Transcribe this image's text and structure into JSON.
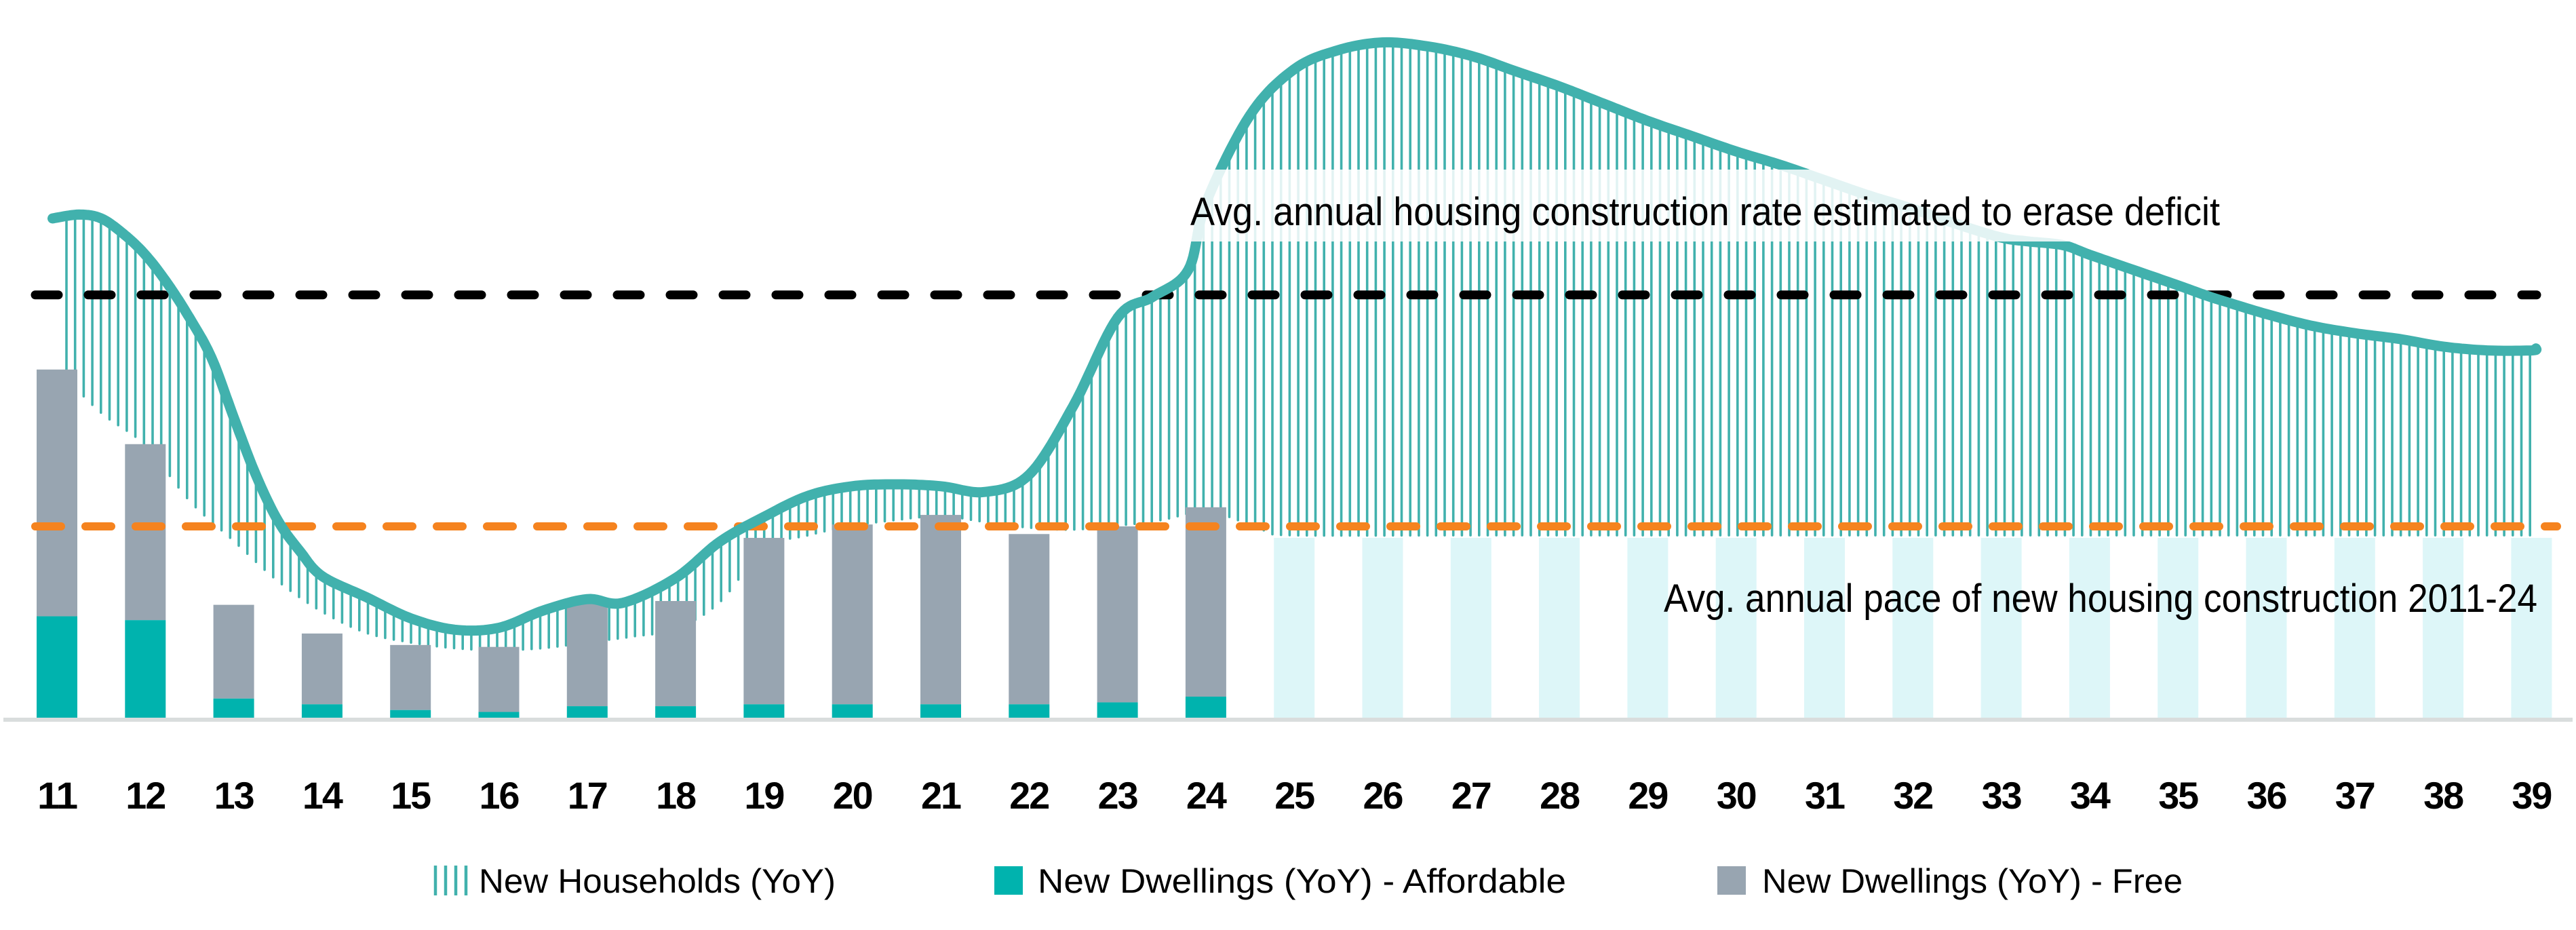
{
  "chart_data": {
    "type": "bar",
    "subtype": "stacked-bars-with-smoothed-line-and-hatched-deficit-area",
    "value_units": "relative index (100 = average annual pace of new housing construction 2011-24); no numeric axis shown in chart",
    "categories": [
      "11",
      "12",
      "13",
      "14",
      "15",
      "16",
      "17",
      "18",
      "19",
      "20",
      "21",
      "22",
      "23",
      "24",
      "25",
      "26",
      "27",
      "28",
      "29",
      "30",
      "31",
      "32",
      "33",
      "34",
      "35",
      "36",
      "37",
      "38",
      "39"
    ],
    "xlabel": "",
    "ylabel": "",
    "grid": "off",
    "legend_position": "bottom",
    "series": [
      {
        "name": "New Households (YoY)",
        "type": "line",
        "style": "thick smooth teal line with vertical hatch fill hanging down to the dwellings level",
        "values_at_years": [
          261,
          242,
          157,
          74,
          52,
          47,
          62,
          73,
          105,
          121,
          121,
          127,
          209,
          269,
          339,
          353,
          346,
          330,
          312,
          296,
          281,
          266,
          251,
          242,
          226,
          211,
          201,
          194,
          192
        ],
        "points": [
          [
            10.95,
            261
          ],
          [
            11.25,
            263
          ],
          [
            11.5,
            261
          ],
          [
            11.75,
            253
          ],
          [
            12,
            242
          ],
          [
            12.25,
            227
          ],
          [
            12.5,
            209
          ],
          [
            12.75,
            188
          ],
          [
            13,
            157
          ],
          [
            13.25,
            127
          ],
          [
            13.5,
            103
          ],
          [
            13.75,
            87
          ],
          [
            14,
            74
          ],
          [
            14.5,
            63
          ],
          [
            15,
            52
          ],
          [
            15.5,
            46
          ],
          [
            16,
            47
          ],
          [
            16.5,
            56
          ],
          [
            17,
            62
          ],
          [
            17.4,
            60
          ],
          [
            18,
            73
          ],
          [
            18.5,
            92
          ],
          [
            19,
            105
          ],
          [
            19.5,
            116
          ],
          [
            20,
            121
          ],
          [
            20.5,
            122
          ],
          [
            21,
            121
          ],
          [
            21.5,
            118
          ],
          [
            22,
            127
          ],
          [
            22.5,
            163
          ],
          [
            23,
            209
          ],
          [
            23.4,
            220
          ],
          [
            23.8,
            234
          ],
          [
            24,
            269
          ],
          [
            24.5,
            315
          ],
          [
            25,
            339
          ],
          [
            25.5,
            349
          ],
          [
            26,
            353
          ],
          [
            26.5,
            351
          ],
          [
            27,
            346
          ],
          [
            27.5,
            338
          ],
          [
            28,
            330
          ],
          [
            28.5,
            321
          ],
          [
            29,
            312
          ],
          [
            29.5,
            304
          ],
          [
            30,
            296
          ],
          [
            30.5,
            289
          ],
          [
            31,
            281
          ],
          [
            31.5,
            273
          ],
          [
            32,
            266
          ],
          [
            32.5,
            258
          ],
          [
            33,
            251
          ],
          [
            33.3,
            249
          ],
          [
            33.7,
            247
          ],
          [
            34,
            242
          ],
          [
            34.5,
            234
          ],
          [
            35,
            226
          ],
          [
            35.3,
            221
          ],
          [
            35.5,
            218
          ],
          [
            36,
            211
          ],
          [
            36.5,
            205
          ],
          [
            37,
            201
          ],
          [
            37.5,
            198
          ],
          [
            38,
            194
          ],
          [
            38.5,
            192
          ],
          [
            39,
            192
          ],
          [
            39.05,
            193
          ]
        ]
      },
      {
        "name": "New Dwellings (YoY) - Affordable",
        "type": "bar",
        "values": [
          53,
          51,
          10,
          7,
          4,
          3,
          6,
          6,
          7,
          7,
          7,
          7,
          8,
          11,
          null,
          null,
          null,
          null,
          null,
          null,
          null,
          null,
          null,
          null,
          null,
          null,
          null,
          null,
          null
        ]
      },
      {
        "name": "New Dwellings (YoY) - Free",
        "type": "bar",
        "values": [
          129,
          92,
          49,
          37,
          34,
          34,
          54,
          55,
          87,
          94,
          99,
          89,
          92,
          99,
          null,
          null,
          null,
          null,
          null,
          null,
          null,
          null,
          null,
          null,
          null,
          null,
          null,
          null,
          null
        ]
      },
      {
        "name": "future-construction-bars (unlabeled pale cyan bars, years 25-39)",
        "type": "bar",
        "values": [
          null,
          null,
          null,
          null,
          null,
          null,
          null,
          null,
          null,
          null,
          null,
          null,
          null,
          null,
          94,
          94,
          94,
          94,
          94,
          94,
          94,
          94,
          94,
          94,
          94,
          94,
          94,
          94,
          94
        ]
      }
    ],
    "hatch_lower_envelope_points": [
      [
        11,
        182
      ],
      [
        11.5,
        159
      ],
      [
        12,
        142
      ],
      [
        12.5,
        113
      ],
      [
        13,
        92
      ],
      [
        13.5,
        71
      ],
      [
        14,
        55
      ],
      [
        14.5,
        44
      ],
      [
        15,
        39
      ],
      [
        15.5,
        36
      ],
      [
        16,
        35
      ],
      [
        16.5,
        36
      ],
      [
        17,
        39
      ],
      [
        17.5,
        42
      ],
      [
        18,
        46
      ],
      [
        18.5,
        60
      ],
      [
        19,
        88
      ],
      [
        19.5,
        95
      ],
      [
        20,
        100
      ],
      [
        20.5,
        103
      ],
      [
        21,
        105
      ],
      [
        21.5,
        102
      ],
      [
        22,
        99
      ],
      [
        22.5,
        98
      ],
      [
        23,
        100
      ],
      [
        23.5,
        103
      ],
      [
        24,
        108
      ],
      [
        24.3,
        104
      ],
      [
        24.7,
        97
      ],
      [
        25,
        95
      ],
      [
        27,
        95
      ],
      [
        30,
        95
      ],
      [
        34,
        95
      ],
      [
        39.4,
        95
      ]
    ],
    "reference_lines": [
      {
        "id": "deficit_rate",
        "value": 221,
        "style": "black dashed",
        "label": "Avg. annual housing construction rate estimated to erase deficit"
      },
      {
        "id": "avg_pace",
        "value": 100,
        "style": "orange dashed",
        "label": "Avg. annual pace of new housing construction 2011-24"
      }
    ]
  },
  "annotations": {
    "deficit_rate": "Avg. annual housing construction rate estimated to erase deficit",
    "pace": "Avg. annual pace of new housing construction 2011-24"
  },
  "legend": {
    "households_label": "New Households (YoY)",
    "affordable_label": "New Dwellings (YoY) - Affordable",
    "free_label": "New Dwellings (YoY) - Free"
  },
  "x_axis": {
    "labels": [
      "11",
      "12",
      "13",
      "14",
      "15",
      "16",
      "17",
      "18",
      "19",
      "20",
      "21",
      "22",
      "23",
      "24",
      "25",
      "26",
      "27",
      "28",
      "29",
      "30",
      "31",
      "32",
      "33",
      "34",
      "35",
      "36",
      "37",
      "38",
      "39"
    ]
  },
  "colors": {
    "line_teal": "#41b1ad",
    "hatch_teal": "#41b1ad",
    "affordable_teal": "#00b3ae",
    "free_gray": "#98a5b1",
    "future_cyan": "#ddf6f8",
    "orange": "#f5831f",
    "black": "#000000",
    "axis_gray": "#d9dddd"
  }
}
